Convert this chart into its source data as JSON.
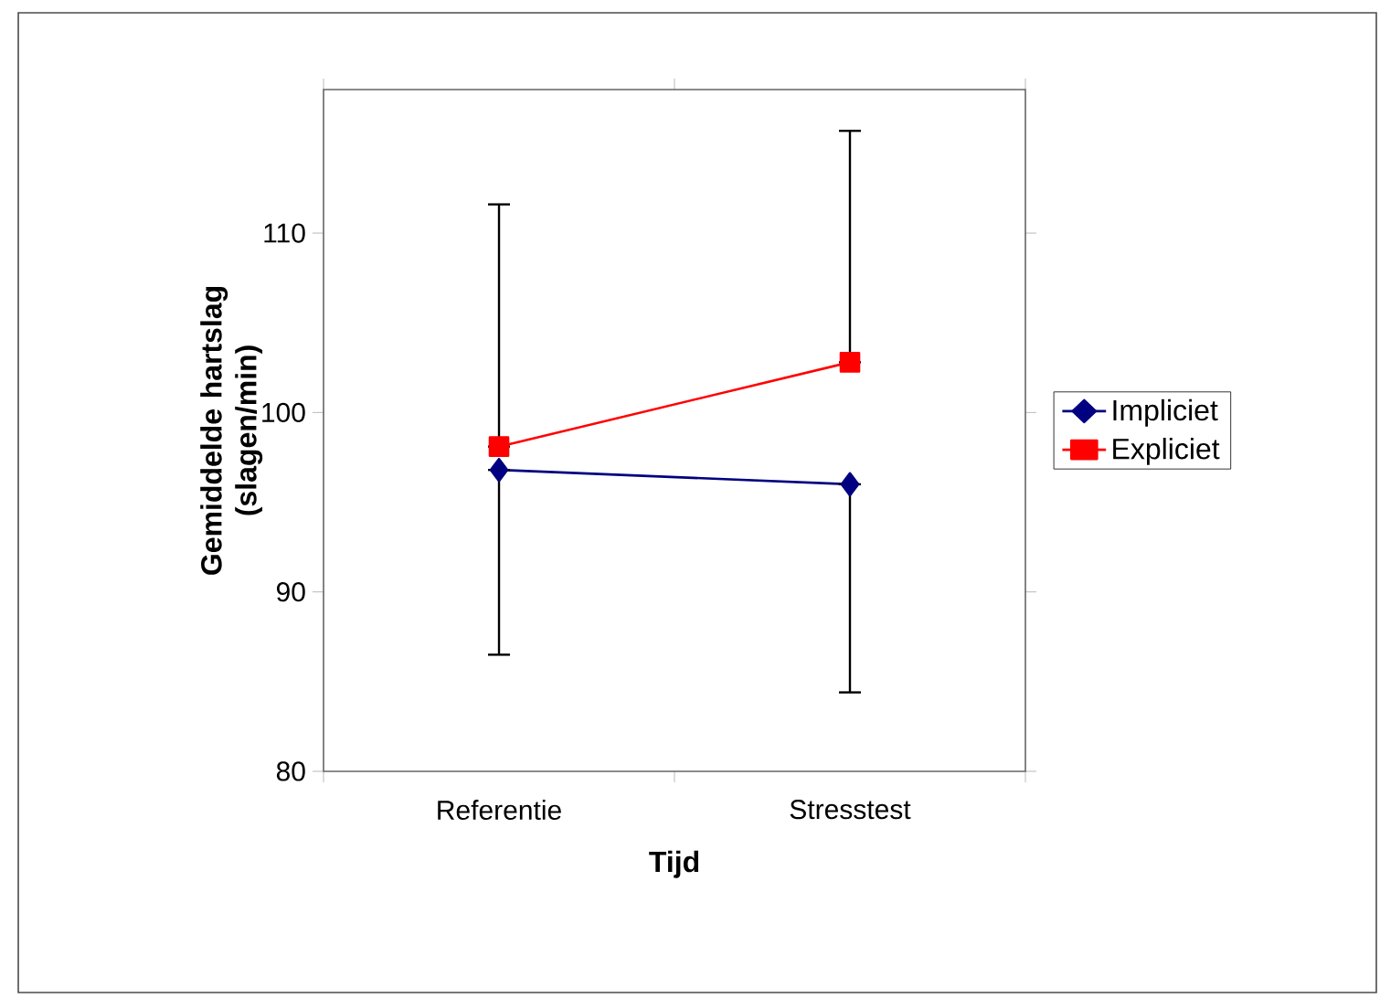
{
  "chart_data": {
    "type": "line",
    "xlabel": "Tijd",
    "ylabel": "Gemiddelde hartslag (slagen/min)",
    "categories": [
      "Referentie",
      "Stresstest"
    ],
    "series": [
      {
        "name": "Impliciet",
        "color": "#000080",
        "marker": "diamond",
        "values": [
          96.8,
          96.0
        ],
        "errors": [
          [
            86.5,
            96.8
          ],
          [
            84.4,
            96.0
          ]
        ]
      },
      {
        "name": "Expliciet",
        "color": "#ff0000",
        "marker": "square",
        "values": [
          98.1,
          102.8
        ],
        "errors": [
          [
            98.1,
            111.6
          ],
          [
            102.8,
            115.7
          ]
        ]
      }
    ],
    "ylim": [
      80,
      118
    ],
    "yticks": [
      80,
      90,
      100,
      110
    ],
    "grid": false,
    "legend": "right"
  }
}
